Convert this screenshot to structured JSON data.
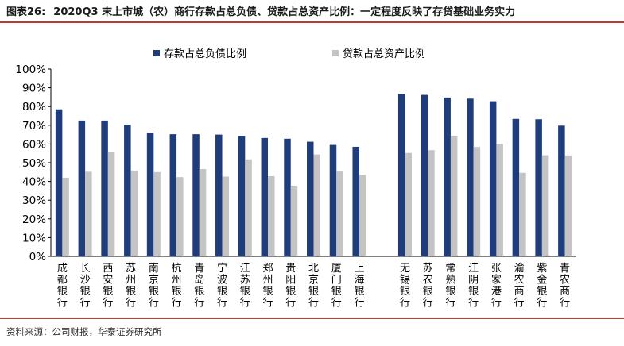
{
  "header": {
    "figure_label": "图表26:",
    "title": "2020Q3 末上市城（农）商行存款占总负债、贷款占总资产比例：一定程度反映了存贷基础业务实力"
  },
  "footer": {
    "source": "资料来源：公司财报，华泰证券研究所"
  },
  "colors": {
    "series_deposit": "#1f3d7a",
    "series_loan": "#c4c4c4",
    "rule": "#c0392b"
  },
  "chart_data": {
    "type": "bar",
    "title": "",
    "xlabel": "",
    "ylabel": "",
    "ylim": [
      0,
      100
    ],
    "yticks": [
      "0%",
      "10%",
      "20%",
      "30%",
      "40%",
      "50%",
      "60%",
      "70%",
      "80%",
      "90%",
      "100%"
    ],
    "legend_position": "top",
    "categories": [
      "成都银行",
      "长沙银行",
      "西安银行",
      "苏州银行",
      "南京银行",
      "杭州银行",
      "青岛银行",
      "宁波银行",
      "江苏银行",
      "郑州银行",
      "贵阳银行",
      "北京银行",
      "厦门银行",
      "上海银行",
      "",
      "无锡银行",
      "苏农银行",
      "常熟银行",
      "江阴银行",
      "张家港行",
      "渝农商行",
      "紫金银行",
      "青农商行"
    ],
    "series": [
      {
        "name": "存款占总负债比例",
        "values": [
          78.5,
          72.5,
          72.5,
          70.3,
          66.0,
          65.2,
          65.2,
          65.0,
          64.2,
          63.2,
          62.8,
          61.2,
          59.5,
          58.5,
          null,
          86.7,
          86.2,
          84.8,
          84.2,
          82.8,
          73.4,
          73.2,
          69.8
        ]
      },
      {
        "name": "贷款占总资产比例",
        "values": [
          42.0,
          45.2,
          55.7,
          45.8,
          45.0,
          42.3,
          46.6,
          42.6,
          51.8,
          42.8,
          37.7,
          54.4,
          45.3,
          43.5,
          null,
          55.2,
          56.7,
          64.3,
          58.4,
          60.0,
          44.6,
          54.0,
          53.9
        ]
      }
    ]
  }
}
